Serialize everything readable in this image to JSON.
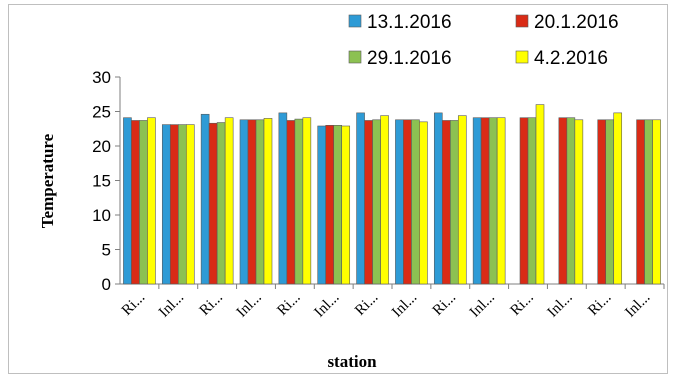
{
  "chart_data": {
    "type": "bar",
    "title": "",
    "xlabel": "station",
    "ylabel": "Temperature",
    "ylim": [
      0,
      30
    ],
    "yticks": [
      0,
      5,
      10,
      15,
      20,
      25,
      30
    ],
    "grid": false,
    "legend_position": "top-right",
    "categories": [
      "Ri...",
      "Inl...",
      "Ri...",
      "Inl...",
      "Ri...",
      "Inl...",
      "Ri...",
      "Inl...",
      "Ri...",
      "Inl...",
      "Ri...",
      "Inl...",
      "Ri...",
      "Inl..."
    ],
    "series": [
      {
        "name": "13.1.2016",
        "color": "#2e9bd6",
        "values": [
          24.1,
          23.1,
          24.6,
          23.8,
          24.8,
          22.9,
          24.8,
          23.8,
          24.8,
          24.1,
          null,
          null,
          null,
          null
        ]
      },
      {
        "name": "20.1.2016",
        "color": "#d92b16",
        "values": [
          23.7,
          23.1,
          23.3,
          23.8,
          23.7,
          23.0,
          23.7,
          23.8,
          23.7,
          24.1,
          24.1,
          24.1,
          23.8,
          23.8
        ]
      },
      {
        "name": "29.1.2016",
        "color": "#8cc152",
        "values": [
          23.7,
          23.1,
          23.4,
          23.8,
          23.9,
          23.0,
          23.8,
          23.8,
          23.7,
          24.1,
          24.1,
          24.1,
          23.8,
          23.8
        ]
      },
      {
        "name": "4.2.2016",
        "color": "#ffff00",
        "values": [
          24.1,
          23.1,
          24.1,
          24.0,
          24.1,
          22.9,
          24.4,
          23.5,
          24.4,
          24.1,
          26.0,
          23.8,
          24.8,
          23.8
        ]
      }
    ]
  }
}
